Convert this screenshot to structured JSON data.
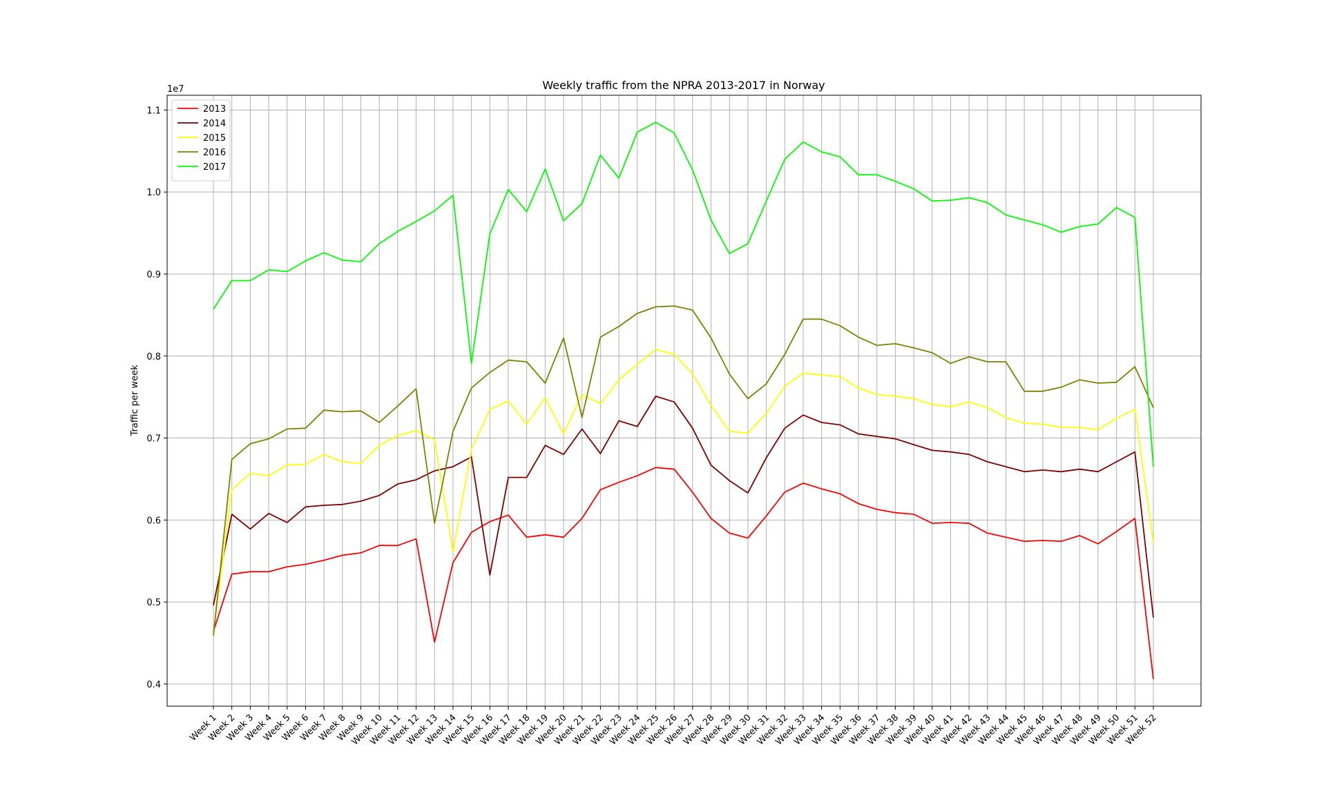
{
  "chart_data": {
    "type": "line",
    "title": "Weekly traffic from the NPRA 2013-2017 in Norway",
    "xlabel": "",
    "ylabel": "Traffic per week",
    "y_scale_label": "1e7",
    "ylim": [
      0.373,
      1.118
    ],
    "yticks": [
      0.4,
      0.5,
      0.6,
      0.7,
      0.8,
      0.9,
      1.0,
      1.1
    ],
    "ytick_labels": [
      "0.4",
      "0.5",
      "0.6",
      "0.7",
      "0.8",
      "0.9",
      "1.0",
      "1.1"
    ],
    "grid": true,
    "legend_position": "top-left",
    "categories": [
      "Week 1",
      "Week 2",
      "Week 3",
      "Week 4",
      "Week 5",
      "Week 6",
      "Week 7",
      "Week 8",
      "Week 9",
      "Week 10",
      "Week 11",
      "Week 12",
      "Week 13",
      "Week 14",
      "Week 15",
      "Week 16",
      "Week 17",
      "Week 18",
      "Week 19",
      "Week 20",
      "Week 21",
      "Week 22",
      "Week 23",
      "Week 24",
      "Week 25",
      "Week 26",
      "Week 27",
      "Week 28",
      "Week 29",
      "Week 30",
      "Week 31",
      "Week 32",
      "Week 33",
      "Week 34",
      "Week 35",
      "Week 36",
      "Week 37",
      "Week 38",
      "Week 39",
      "Week 40",
      "Week 41",
      "Week 42",
      "Week 43",
      "Week 44",
      "Week 45",
      "Week 46",
      "Week 47",
      "Week 48",
      "Week 49",
      "Week 50",
      "Week 51",
      "Week 52"
    ],
    "series": [
      {
        "name": "2013",
        "color": "#ff0000",
        "values": [
          0.464,
          0.534,
          0.537,
          0.537,
          0.543,
          0.546,
          0.551,
          0.557,
          0.56,
          0.569,
          0.569,
          0.577,
          0.451,
          0.548,
          0.585,
          0.598,
          0.606,
          0.579,
          0.582,
          0.579,
          0.602,
          0.637,
          0.646,
          0.654,
          0.664,
          0.662,
          0.634,
          0.602,
          0.584,
          0.578,
          0.605,
          0.634,
          0.645,
          0.638,
          0.632,
          0.62,
          0.613,
          0.609,
          0.607,
          0.596,
          0.597,
          0.596,
          0.584,
          0.579,
          0.574,
          0.575,
          0.574,
          0.581,
          0.571,
          0.586,
          0.602,
          0.406
        ]
      },
      {
        "name": "2014",
        "color": "#800000",
        "values": [
          0.496,
          0.607,
          0.589,
          0.608,
          0.597,
          0.616,
          0.618,
          0.619,
          0.623,
          0.63,
          0.644,
          0.649,
          0.66,
          0.665,
          0.677,
          0.533,
          0.652,
          0.652,
          0.691,
          0.68,
          0.711,
          0.681,
          0.721,
          0.714,
          0.751,
          0.744,
          0.712,
          0.667,
          0.648,
          0.633,
          0.676,
          0.712,
          0.728,
          0.719,
          0.716,
          0.705,
          0.702,
          0.699,
          0.692,
          0.685,
          0.683,
          0.68,
          0.671,
          0.665,
          0.659,
          0.661,
          0.659,
          0.662,
          0.659,
          0.671,
          0.683,
          0.481
        ]
      },
      {
        "name": "2015",
        "color": "#ffff00",
        "values": [
          0.462,
          0.637,
          0.657,
          0.654,
          0.667,
          0.668,
          0.68,
          0.671,
          0.669,
          0.691,
          0.703,
          0.709,
          0.698,
          0.561,
          0.686,
          0.735,
          0.745,
          0.717,
          0.749,
          0.705,
          0.753,
          0.742,
          0.771,
          0.79,
          0.808,
          0.802,
          0.778,
          0.74,
          0.708,
          0.706,
          0.73,
          0.763,
          0.779,
          0.777,
          0.775,
          0.761,
          0.753,
          0.751,
          0.748,
          0.741,
          0.738,
          0.744,
          0.737,
          0.725,
          0.718,
          0.717,
          0.713,
          0.713,
          0.71,
          0.724,
          0.735,
          0.572
        ]
      },
      {
        "name": "2016",
        "color": "#808000",
        "values": [
          0.459,
          0.674,
          0.693,
          0.699,
          0.711,
          0.712,
          0.734,
          0.732,
          0.733,
          0.719,
          0.739,
          0.76,
          0.596,
          0.708,
          0.761,
          0.78,
          0.795,
          0.793,
          0.767,
          0.822,
          0.725,
          0.823,
          0.836,
          0.852,
          0.86,
          0.861,
          0.856,
          0.822,
          0.778,
          0.748,
          0.766,
          0.802,
          0.845,
          0.845,
          0.837,
          0.823,
          0.813,
          0.815,
          0.81,
          0.804,
          0.791,
          0.799,
          0.793,
          0.793,
          0.757,
          0.757,
          0.762,
          0.771,
          0.767,
          0.768,
          0.787,
          0.737
        ]
      },
      {
        "name": "2017",
        "color": "#00ff00",
        "values": [
          0.857,
          0.892,
          0.892,
          0.905,
          0.903,
          0.916,
          0.926,
          0.917,
          0.915,
          0.937,
          0.952,
          0.964,
          0.977,
          0.996,
          0.791,
          0.949,
          1.003,
          0.976,
          1.028,
          0.965,
          0.986,
          1.045,
          1.017,
          1.073,
          1.085,
          1.072,
          1.027,
          0.966,
          0.925,
          0.937,
          0.989,
          1.04,
          1.061,
          1.049,
          1.043,
          1.021,
          1.021,
          1.013,
          1.004,
          0.989,
          0.99,
          0.993,
          0.987,
          0.972,
          0.966,
          0.96,
          0.951,
          0.958,
          0.961,
          0.981,
          0.969,
          0.665
        ]
      }
    ]
  }
}
